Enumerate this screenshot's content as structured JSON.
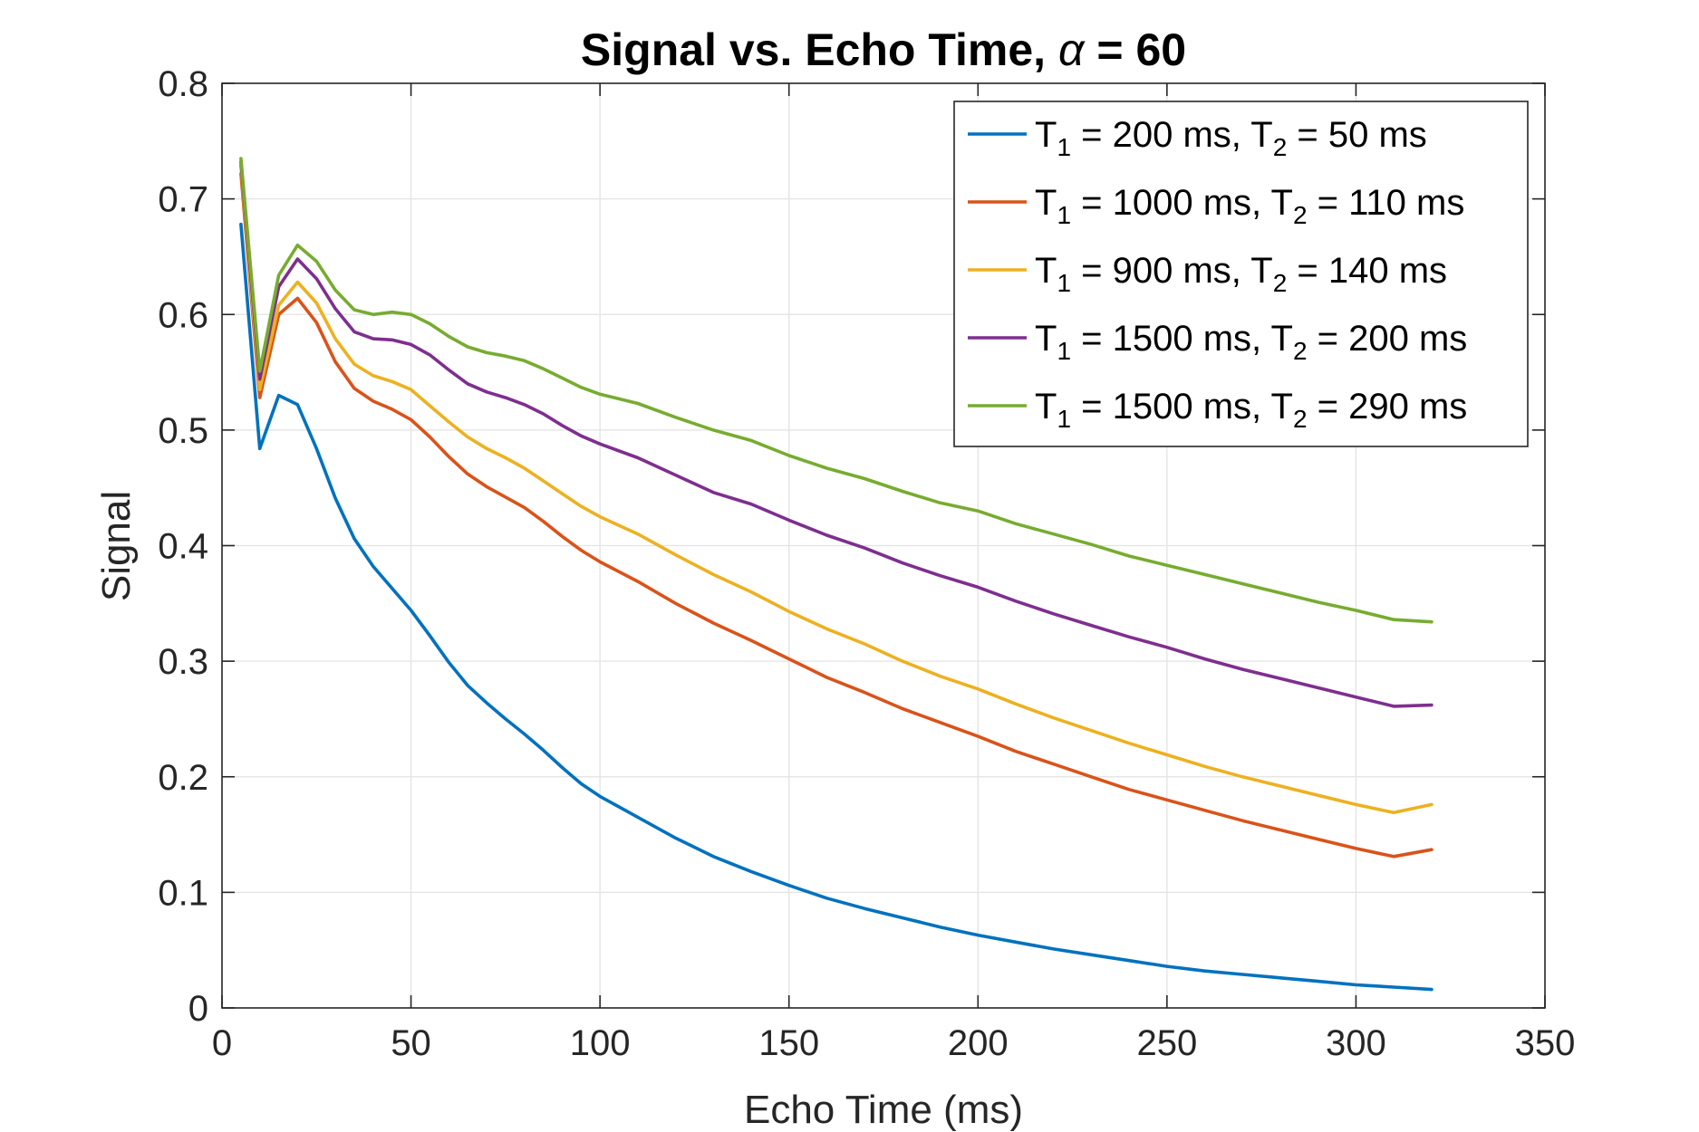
{
  "chart_data": {
    "type": "line",
    "title": "Signal vs. Echo Time, α = 60",
    "title_parts": {
      "prefix": "Signal vs. Echo Time, ",
      "symbol": "α",
      "suffix": " = 60"
    },
    "xlabel": "Echo Time (ms)",
    "ylabel": "Signal",
    "xlim": [
      0,
      350
    ],
    "ylim": [
      0,
      0.8
    ],
    "xticks": [
      0,
      50,
      100,
      150,
      200,
      250,
      300,
      350
    ],
    "xtick_labels": [
      "0",
      "50",
      "100",
      "150",
      "200",
      "250",
      "300",
      "350"
    ],
    "yticks": [
      0,
      0.1,
      0.2,
      0.3,
      0.4,
      0.5,
      0.6,
      0.7,
      0.8
    ],
    "ytick_labels": [
      "0",
      "0.1",
      "0.2",
      "0.3",
      "0.4",
      "0.5",
      "0.6",
      "0.7",
      "0.8"
    ],
    "grid": true,
    "legend_position": "top-right",
    "x": [
      5,
      10,
      15,
      20,
      25,
      30,
      35,
      40,
      45,
      50,
      55,
      60,
      65,
      70,
      75,
      80,
      85,
      90,
      95,
      100,
      110,
      120,
      130,
      140,
      150,
      160,
      170,
      180,
      190,
      200,
      210,
      220,
      230,
      240,
      250,
      260,
      270,
      280,
      290,
      300,
      310,
      320
    ],
    "series": [
      {
        "name": "T1 = 200 ms, T2 = 50 ms",
        "legend": {
          "a": "T",
          "a_sub": "1",
          "b": " = 200 ms, T",
          "b_sub": "2",
          "c": " = 50 ms"
        },
        "color": "#0072BD",
        "values": [
          0.678,
          0.484,
          0.53,
          0.522,
          0.484,
          0.441,
          0.406,
          0.382,
          0.363,
          0.344,
          0.322,
          0.299,
          0.279,
          0.264,
          0.25,
          0.237,
          0.223,
          0.208,
          0.194,
          0.183,
          0.165,
          0.147,
          0.131,
          0.118,
          0.106,
          0.095,
          0.086,
          0.078,
          0.07,
          0.063,
          0.057,
          0.051,
          0.046,
          0.041,
          0.036,
          0.032,
          0.029,
          0.026,
          0.023,
          0.02,
          0.018,
          0.016
        ]
      },
      {
        "name": "T1 = 1000 ms, T2 = 110 ms",
        "legend": {
          "a": "T",
          "a_sub": "1",
          "b": " = 1000 ms, T",
          "b_sub": "2",
          "c": " = 110 ms"
        },
        "color": "#D95319",
        "values": [
          0.722,
          0.528,
          0.6,
          0.614,
          0.593,
          0.559,
          0.536,
          0.525,
          0.518,
          0.509,
          0.494,
          0.477,
          0.462,
          0.451,
          0.442,
          0.433,
          0.421,
          0.408,
          0.396,
          0.386,
          0.369,
          0.35,
          0.333,
          0.318,
          0.302,
          0.286,
          0.273,
          0.259,
          0.247,
          0.235,
          0.222,
          0.211,
          0.2,
          0.189,
          0.18,
          0.171,
          0.162,
          0.154,
          0.146,
          0.138,
          0.131,
          0.137
        ]
      },
      {
        "name": "T1 = 900 ms, T2 = 140 ms",
        "legend": {
          "a": "T",
          "a_sub": "1",
          "b": " = 900 ms, T",
          "b_sub": "2",
          "c": " = 140 ms"
        },
        "color": "#EDB120",
        "values": [
          0.729,
          0.535,
          0.608,
          0.628,
          0.61,
          0.579,
          0.557,
          0.547,
          0.542,
          0.535,
          0.521,
          0.507,
          0.494,
          0.484,
          0.476,
          0.467,
          0.456,
          0.445,
          0.434,
          0.425,
          0.41,
          0.392,
          0.375,
          0.36,
          0.343,
          0.328,
          0.315,
          0.3,
          0.287,
          0.276,
          0.263,
          0.251,
          0.24,
          0.229,
          0.219,
          0.209,
          0.2,
          0.192,
          0.184,
          0.176,
          0.169,
          0.176
        ]
      },
      {
        "name": "T1 = 1500 ms, T2 = 200 ms",
        "legend": {
          "a": "T",
          "a_sub": "1",
          "b": " = 1500 ms, T",
          "b_sub": "2",
          "c": " = 200 ms"
        },
        "color": "#7E2F8E",
        "values": [
          0.732,
          0.544,
          0.624,
          0.648,
          0.631,
          0.605,
          0.585,
          0.579,
          0.578,
          0.574,
          0.565,
          0.552,
          0.54,
          0.533,
          0.528,
          0.522,
          0.514,
          0.504,
          0.495,
          0.488,
          0.476,
          0.461,
          0.446,
          0.436,
          0.422,
          0.409,
          0.398,
          0.385,
          0.374,
          0.364,
          0.352,
          0.341,
          0.331,
          0.321,
          0.312,
          0.302,
          0.293,
          0.285,
          0.277,
          0.269,
          0.261,
          0.262
        ]
      },
      {
        "name": "T1 = 1500 ms, T2 = 290 ms",
        "legend": {
          "a": "T",
          "a_sub": "1",
          "b": " = 1500 ms, T",
          "b_sub": "2",
          "c": " = 290 ms"
        },
        "color": "#77AC30",
        "values": [
          0.735,
          0.551,
          0.634,
          0.66,
          0.646,
          0.621,
          0.604,
          0.6,
          0.602,
          0.6,
          0.592,
          0.581,
          0.572,
          0.567,
          0.564,
          0.56,
          0.553,
          0.545,
          0.537,
          0.531,
          0.523,
          0.511,
          0.5,
          0.491,
          0.478,
          0.467,
          0.458,
          0.447,
          0.437,
          0.43,
          0.419,
          0.41,
          0.401,
          0.391,
          0.383,
          0.375,
          0.367,
          0.359,
          0.351,
          0.344,
          0.336,
          0.334
        ]
      }
    ]
  }
}
